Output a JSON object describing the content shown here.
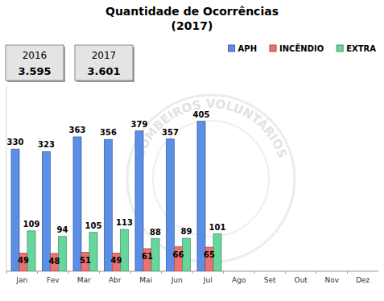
{
  "chart_data": {
    "type": "bar",
    "title": "Quantidade de Ocorrências",
    "subtitle": "(2017)",
    "summary": [
      {
        "label": "2016",
        "text": "3.595"
      },
      {
        "label": "2017",
        "text": "3.601"
      }
    ],
    "annotations": [
      "BOMBEIROS VOLUNTÁRIOS"
    ],
    "categories": [
      "Jan",
      "Fev",
      "Mar",
      "Abr",
      "Mai",
      "Jun",
      "Jul",
      "Ago",
      "Set",
      "Out",
      "Nov",
      "Dez"
    ],
    "series": [
      {
        "name": "APH",
        "color": "#5b8ee6",
        "values": [
          330,
          323,
          363,
          356,
          379,
          357,
          405,
          null,
          null,
          null,
          null,
          null
        ]
      },
      {
        "name": "INCÊNDIO",
        "color": "#f07070",
        "values": [
          49,
          48,
          51,
          49,
          61,
          66,
          65,
          null,
          null,
          null,
          null,
          null
        ]
      },
      {
        "name": "EXTRA",
        "color": "#66d69a",
        "values": [
          109,
          94,
          105,
          113,
          88,
          89,
          101,
          null,
          null,
          null,
          null,
          null
        ]
      }
    ],
    "ylim": [
      0,
      500
    ],
    "legend": "top-right",
    "data_labels": true,
    "tick_labels": "x",
    "grid": false
  }
}
